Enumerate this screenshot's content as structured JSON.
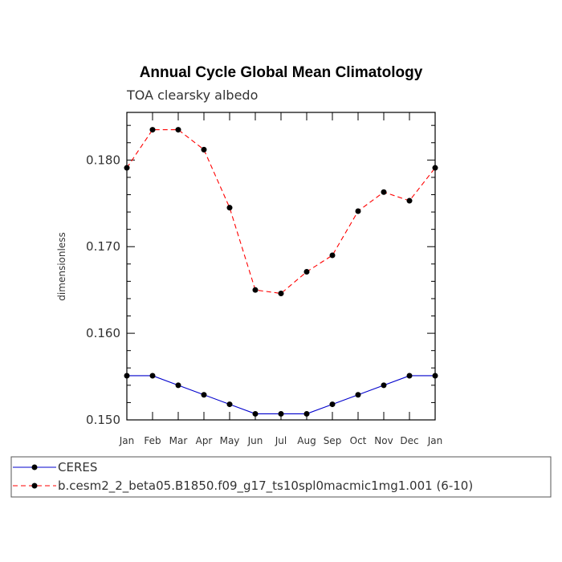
{
  "chart_data": {
    "type": "line",
    "title": "Annual Cycle Global Mean Climatology",
    "subtitle": "TOA clearsky albedo",
    "xlabel": "",
    "ylabel": "dimensionless",
    "categories": [
      "Jan",
      "Feb",
      "Mar",
      "Apr",
      "May",
      "Jun",
      "Jul",
      "Aug",
      "Sep",
      "Oct",
      "Nov",
      "Dec",
      "Jan"
    ],
    "ylim": [
      0.15,
      0.1855
    ],
    "yticks": [
      0.15,
      0.16,
      0.17,
      0.18
    ],
    "ytick_labels": [
      "0.150",
      "0.160",
      "0.170",
      "0.180"
    ],
    "series": [
      {
        "name": "CERES",
        "color": "#0000cc",
        "line_style": "solid",
        "values": [
          0.1551,
          0.1551,
          0.154,
          0.1529,
          0.1518,
          0.1507,
          0.1507,
          0.1507,
          0.1518,
          0.1529,
          0.154,
          0.1551,
          0.1551
        ]
      },
      {
        "name": "b.cesm2_2_beta05.B1850.f09_g17_ts10spl0macmic1mg1.001 (6-10)",
        "color": "#ff0000",
        "line_style": "dashed",
        "values": [
          0.1791,
          0.1835,
          0.1835,
          0.1812,
          0.1745,
          0.165,
          0.1646,
          0.1671,
          0.169,
          0.1741,
          0.1763,
          0.1753,
          0.1791
        ]
      }
    ],
    "legend": {
      "placement": "below",
      "entries": [
        "CERES",
        "b.cesm2_2_beta05.B1850.f09_g17_ts10spl0macmic1mg1.001 (6-10)"
      ]
    },
    "grid": false
  }
}
